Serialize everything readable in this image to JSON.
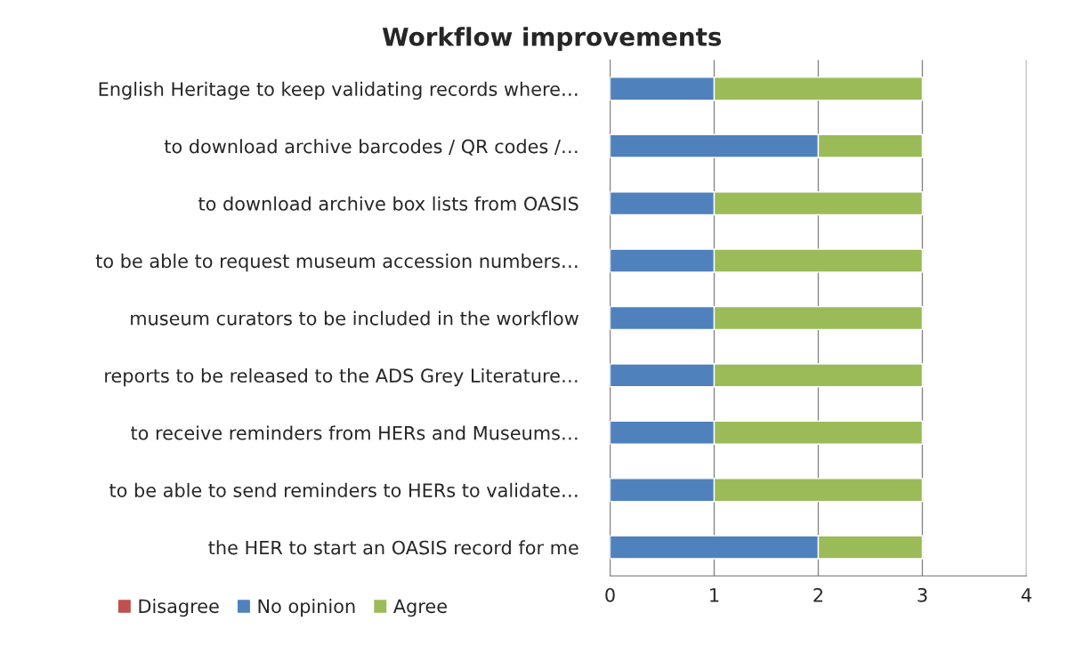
{
  "chart_data": {
    "type": "bar",
    "orientation": "horizontal",
    "stacked": true,
    "title": "Workflow improvements",
    "categories": [
      "English Heritage to keep validating records where…",
      "to download archive barcodes / QR codes /…",
      "to download archive box lists from OASIS",
      "to be able to request museum accession numbers…",
      "museum curators to be included in the workflow",
      "reports to be released to the ADS Grey Literature…",
      "to receive reminders from HERs and Museums…",
      "to be able to send reminders to HERs to validate…",
      "the HER to start an OASIS record for me"
    ],
    "series": [
      {
        "name": "Disagree",
        "color": "#c0504d",
        "values": [
          0,
          0,
          0,
          0,
          0,
          0,
          0,
          0,
          0
        ]
      },
      {
        "name": "No opinion",
        "color": "#4f81bd",
        "values": [
          1,
          2,
          1,
          1,
          1,
          1,
          1,
          1,
          2
        ]
      },
      {
        "name": "Agree",
        "color": "#9bbb59",
        "values": [
          2,
          1,
          2,
          2,
          2,
          2,
          2,
          2,
          1
        ]
      }
    ],
    "xlim": [
      0,
      4
    ],
    "xticks": [
      0,
      1,
      2,
      3,
      4
    ],
    "grid": "x",
    "legend": "bottom left"
  }
}
